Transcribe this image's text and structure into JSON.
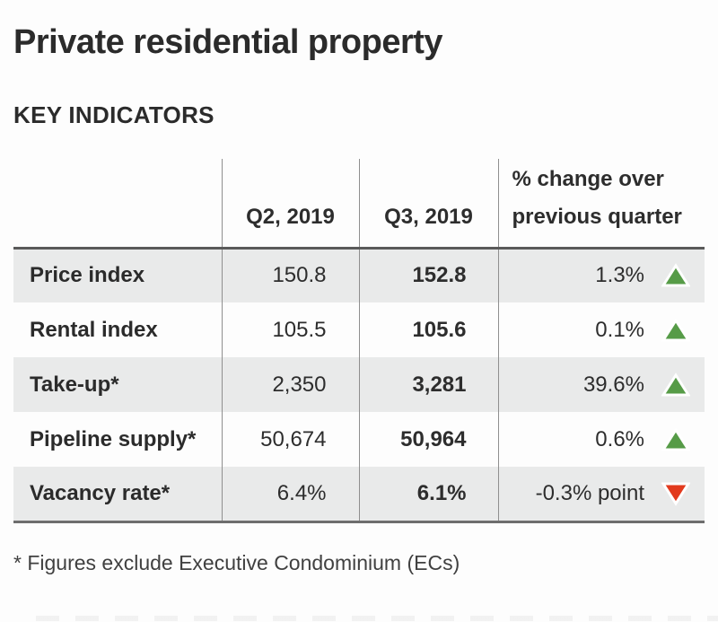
{
  "title": "Private residential property",
  "subtitle": "KEY INDICATORS",
  "table": {
    "header": {
      "q2": "Q2, 2019",
      "q3": "Q3, 2019",
      "change_line1": "% change over",
      "change_line2": "previous quarter"
    },
    "rows": [
      {
        "label": "Price index",
        "q2": "150.8",
        "q3": "152.8",
        "change": "1.3%",
        "direction": "up"
      },
      {
        "label": "Rental index",
        "q2": "105.5",
        "q3": "105.6",
        "change": "0.1%",
        "direction": "up"
      },
      {
        "label": "Take-up*",
        "q2": "2,350",
        "q3": "3,281",
        "change": "39.6%",
        "direction": "up"
      },
      {
        "label": "Pipeline supply*",
        "q2": "50,674",
        "q3": "50,964",
        "change": "0.6%",
        "direction": "up"
      },
      {
        "label": "Vacancy rate*",
        "q2": "6.4%",
        "q3": "6.1%",
        "change": "-0.3% point",
        "direction": "down"
      }
    ]
  },
  "footnote": "* Figures exclude Executive Condominium (ECs)",
  "colors": {
    "up_triangle": "#569b47",
    "down_triangle": "#e23a1d",
    "row_alt_background": "#e9eaea",
    "divider": "#8f8f8f",
    "header_border": "#5a5a5a",
    "text": "#2d2d2d"
  },
  "chart_data": {
    "type": "table",
    "title": "Private residential property",
    "subtitle": "KEY INDICATORS",
    "columns": [
      "",
      "Q2, 2019",
      "Q3, 2019",
      "% change over previous quarter"
    ],
    "rows": [
      [
        "Price index",
        150.8,
        152.8,
        "1.3% up"
      ],
      [
        "Rental index",
        105.5,
        105.6,
        "0.1% up"
      ],
      [
        "Take-up*",
        2350,
        3281,
        "39.6% up"
      ],
      [
        "Pipeline supply*",
        50674,
        50964,
        "0.6% up"
      ],
      [
        "Vacancy rate*",
        "6.4%",
        "6.1%",
        "-0.3% point down"
      ]
    ],
    "footnote": "* Figures exclude Executive Condominium (ECs)"
  }
}
